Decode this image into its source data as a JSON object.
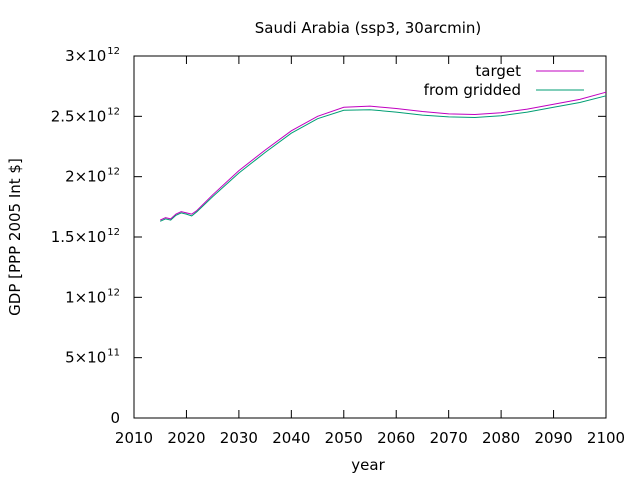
{
  "chart_data": {
    "type": "line",
    "title": "Saudi Arabia (ssp3, 30arcmin)",
    "xlabel": "year",
    "ylabel": "GDP [PPP 2005 Int $]",
    "xlim": [
      2010,
      2100
    ],
    "ylim": [
      0,
      3000000000000
    ],
    "x_ticks": [
      2010,
      2020,
      2030,
      2040,
      2050,
      2060,
      2070,
      2080,
      2090,
      2100
    ],
    "y_ticks": [
      {
        "value": 0,
        "mantissa": "0",
        "exponent": ""
      },
      {
        "value": 500000000000,
        "mantissa": "5×10",
        "exponent": "11"
      },
      {
        "value": 1000000000000,
        "mantissa": "1×10",
        "exponent": "12"
      },
      {
        "value": 1500000000000,
        "mantissa": "1.5×10",
        "exponent": "12"
      },
      {
        "value": 2000000000000,
        "mantissa": "2×10",
        "exponent": "12"
      },
      {
        "value": 2500000000000,
        "mantissa": "2.5×10",
        "exponent": "12"
      },
      {
        "value": 3000000000000,
        "mantissa": "3×10",
        "exponent": "12"
      }
    ],
    "grid": false,
    "legend_position": "top-right",
    "series": [
      {
        "name": "target",
        "color": "#c000c0",
        "points": [
          [
            2015,
            1640000000000
          ],
          [
            2016,
            1660000000000
          ],
          [
            2017,
            1650000000000
          ],
          [
            2018,
            1690000000000
          ],
          [
            2019,
            1710000000000
          ],
          [
            2020,
            1700000000000
          ],
          [
            2021,
            1690000000000
          ],
          [
            2022,
            1720000000000
          ],
          [
            2025,
            1850000000000
          ],
          [
            2030,
            2050000000000
          ],
          [
            2035,
            2220000000000
          ],
          [
            2040,
            2380000000000
          ],
          [
            2045,
            2500000000000
          ],
          [
            2050,
            2575000000000
          ],
          [
            2055,
            2585000000000
          ],
          [
            2060,
            2565000000000
          ],
          [
            2065,
            2540000000000
          ],
          [
            2070,
            2520000000000
          ],
          [
            2075,
            2515000000000
          ],
          [
            2080,
            2530000000000
          ],
          [
            2085,
            2560000000000
          ],
          [
            2090,
            2600000000000
          ],
          [
            2095,
            2640000000000
          ],
          [
            2100,
            2700000000000
          ]
        ]
      },
      {
        "name": "from gridded",
        "color": "#009e73",
        "points": [
          [
            2015,
            1630000000000
          ],
          [
            2016,
            1650000000000
          ],
          [
            2017,
            1640000000000
          ],
          [
            2018,
            1680000000000
          ],
          [
            2019,
            1700000000000
          ],
          [
            2020,
            1690000000000
          ],
          [
            2021,
            1675000000000
          ],
          [
            2022,
            1710000000000
          ],
          [
            2025,
            1835000000000
          ],
          [
            2030,
            2030000000000
          ],
          [
            2035,
            2200000000000
          ],
          [
            2040,
            2360000000000
          ],
          [
            2045,
            2480000000000
          ],
          [
            2050,
            2550000000000
          ],
          [
            2055,
            2555000000000
          ],
          [
            2060,
            2535000000000
          ],
          [
            2065,
            2510000000000
          ],
          [
            2070,
            2495000000000
          ],
          [
            2075,
            2490000000000
          ],
          [
            2080,
            2505000000000
          ],
          [
            2085,
            2535000000000
          ],
          [
            2090,
            2575000000000
          ],
          [
            2095,
            2615000000000
          ],
          [
            2100,
            2670000000000
          ]
        ]
      }
    ]
  }
}
